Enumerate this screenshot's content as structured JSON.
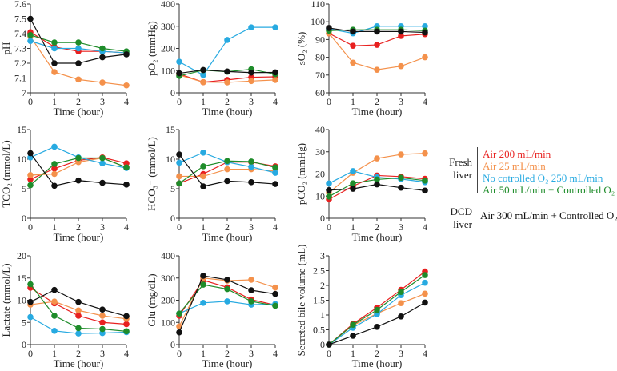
{
  "chart_data": [
    {
      "type": "line",
      "id": "ph",
      "ylabel": "pH",
      "xlabel": "Time (hour)",
      "x": [
        0,
        1,
        2,
        3,
        4
      ],
      "ylim": [
        7,
        7.6
      ],
      "yticks": [
        "7",
        "7.1",
        "7.2",
        "7.3",
        "7.4",
        "7.5",
        "7.6"
      ],
      "ytick_values": [
        7,
        7.1,
        7.2,
        7.3,
        7.4,
        7.5,
        7.6
      ],
      "series": [
        {
          "values": [
            7.41,
            7.31,
            7.28,
            7.28,
            7.27
          ]
        },
        {
          "values": [
            7.38,
            7.14,
            7.09,
            7.07,
            7.05
          ]
        },
        {
          "values": [
            7.35,
            7.3,
            7.3,
            7.28,
            7.27
          ]
        },
        {
          "values": [
            7.39,
            7.34,
            7.34,
            7.3,
            7.28
          ]
        },
        {
          "values": [
            7.5,
            7.2,
            7.2,
            7.24,
            7.26
          ]
        }
      ]
    },
    {
      "type": "line",
      "id": "po2",
      "ylabel": "pO₂ (mmHg)",
      "xlabel": "Time (hour)",
      "x": [
        0,
        1,
        2,
        3,
        4
      ],
      "ylim": [
        0,
        400
      ],
      "yticks": [
        "0",
        "100",
        "200",
        "300",
        "400"
      ],
      "ytick_values": [
        0,
        100,
        200,
        300,
        400
      ],
      "series": [
        {
          "values": [
            85,
            48,
            58,
            70,
            72
          ]
        },
        {
          "values": [
            80,
            48,
            47,
            53,
            58
          ]
        },
        {
          "values": [
            140,
            80,
            238,
            295,
            295
          ]
        },
        {
          "values": [
            76,
            102,
            95,
            106,
            84
          ]
        },
        {
          "values": [
            88,
            103,
            96,
            91,
            92
          ]
        }
      ]
    },
    {
      "type": "line",
      "id": "so2",
      "ylabel": "sO₂ (%)",
      "xlabel": "Time (hour)",
      "x": [
        0,
        1,
        2,
        3,
        4
      ],
      "ylim": [
        60,
        110
      ],
      "yticks": [
        "60",
        "70",
        "80",
        "90",
        "100",
        "110"
      ],
      "ytick_values": [
        60,
        70,
        80,
        90,
        100,
        110
      ],
      "series": [
        {
          "values": [
            93.5,
            86.5,
            87,
            92,
            93
          ]
        },
        {
          "values": [
            93.5,
            77,
            73,
            75,
            80
          ]
        },
        {
          "values": [
            96,
            93.5,
            97.5,
            97.5,
            97.5
          ]
        },
        {
          "values": [
            95,
            95.5,
            95.5,
            95.5,
            95
          ]
        },
        {
          "values": [
            96.5,
            94.5,
            94.5,
            94.5,
            94
          ]
        }
      ]
    },
    {
      "type": "line",
      "id": "tco2",
      "ylabel": "TCO₂ (mmol/L)",
      "xlabel": "Time (hour)",
      "x": [
        0,
        1,
        2,
        3,
        4
      ],
      "ylim": [
        0,
        15
      ],
      "yticks": [
        "0",
        "5",
        "10",
        "15"
      ],
      "ytick_values": [
        0,
        5,
        10,
        15
      ],
      "series": [
        {
          "values": [
            6.6,
            8.4,
            9.8,
            10.3,
            9.3
          ]
        },
        {
          "values": [
            7.3,
            7.5,
            9.5,
            10.2,
            8.6
          ]
        },
        {
          "values": [
            10.3,
            12.1,
            10.3,
            9.3,
            8.5
          ]
        },
        {
          "values": [
            5.6,
            9.2,
            10.2,
            10.2,
            8.6
          ]
        },
        {
          "values": [
            11.0,
            5.5,
            6.4,
            6.0,
            5.7
          ]
        }
      ]
    },
    {
      "type": "line",
      "id": "hco3",
      "ylabel": "HCO₃⁻ (mmol/L)",
      "xlabel": "Time (hour)",
      "x": [
        0,
        1,
        2,
        3,
        4
      ],
      "ylim": [
        0,
        15
      ],
      "yticks": [
        "0",
        "5",
        "10",
        "15"
      ],
      "ytick_values": [
        0,
        5,
        10,
        15
      ],
      "series": [
        {
          "values": [
            5.9,
            7.5,
            9.5,
            9.5,
            8.8
          ]
        },
        {
          "values": [
            7.1,
            7.1,
            8.3,
            8.3,
            8.0
          ]
        },
        {
          "values": [
            9.4,
            11.1,
            9.5,
            8.7,
            7.7
          ]
        },
        {
          "values": [
            5.9,
            8.8,
            9.7,
            9.6,
            8.6
          ]
        },
        {
          "values": [
            10.8,
            5.4,
            6.3,
            6.1,
            5.8
          ]
        }
      ]
    },
    {
      "type": "line",
      "id": "pco2",
      "ylabel": "pCO₂ (mmHg)",
      "xlabel": "Time (hour)",
      "x": [
        0,
        1,
        2,
        3,
        4
      ],
      "ylim": [
        0,
        40
      ],
      "yticks": [
        "0",
        "10",
        "20",
        "30",
        "40"
      ],
      "ytick_values": [
        0,
        10,
        20,
        30,
        40
      ],
      "series": [
        {
          "values": [
            8.5,
            14.5,
            19.3,
            18.8,
            17.8
          ]
        },
        {
          "values": [
            11.5,
            20.5,
            27,
            28.8,
            29.3
          ]
        },
        {
          "values": [
            15.7,
            21.3,
            18.5,
            17.7,
            16.3
          ]
        },
        {
          "values": [
            9.8,
            15.8,
            17.5,
            18.3,
            17
          ]
        },
        {
          "values": [
            12.7,
            13.3,
            15.3,
            13.8,
            12.5
          ]
        }
      ]
    },
    {
      "type": "line",
      "id": "lactate",
      "ylabel": "Lactate (mmol/L)",
      "xlabel": "Time (hour)",
      "x": [
        0,
        1,
        2,
        3,
        4
      ],
      "ylim": [
        0,
        20
      ],
      "yticks": [
        "0",
        "5",
        "10",
        "15",
        "20"
      ],
      "ytick_values": [
        0,
        5,
        10,
        15,
        20
      ],
      "series": [
        {
          "values": [
            12.8,
            9.3,
            6.5,
            5.0,
            4.6
          ]
        },
        {
          "values": [
            9.0,
            9.7,
            7.7,
            6.5,
            5.8
          ]
        },
        {
          "values": [
            6.2,
            3.1,
            2.5,
            2.6,
            2.8
          ]
        },
        {
          "values": [
            13.6,
            6.5,
            3.7,
            3.5,
            3.0
          ]
        },
        {
          "values": [
            9.6,
            12.3,
            9.6,
            7.9,
            6.4
          ]
        }
      ]
    },
    {
      "type": "line",
      "id": "glu",
      "ylabel": "Glu (mg/dL)",
      "xlabel": "Time (hour)",
      "x": [
        0,
        1,
        2,
        3,
        4
      ],
      "ylim": [
        0,
        400
      ],
      "yticks": [
        "0",
        "100",
        "200",
        "300",
        "400"
      ],
      "ytick_values": [
        0,
        100,
        200,
        300,
        400
      ],
      "series": [
        {
          "values": [
            130,
            290,
            258,
            203,
            178
          ]
        },
        {
          "values": [
            82,
            300,
            288,
            292,
            257
          ]
        },
        {
          "values": [
            140,
            188,
            195,
            180,
            183
          ]
        },
        {
          "values": [
            140,
            270,
            250,
            195,
            175
          ]
        },
        {
          "values": [
            55,
            310,
            292,
            245,
            228
          ]
        }
      ]
    },
    {
      "type": "line",
      "id": "bile",
      "ylabel": "Secreted bile volume (mL)",
      "xlabel": "Time (hour)",
      "x": [
        0,
        1,
        2,
        3,
        4
      ],
      "ylim": [
        0,
        3
      ],
      "yticks": [
        "0",
        "0.5",
        "1",
        "1.5",
        "2",
        "2.5",
        "3"
      ],
      "ytick_values": [
        0,
        0.5,
        1,
        1.5,
        2,
        2.5,
        3
      ],
      "series": [
        {
          "values": [
            0,
            0.7,
            1.25,
            1.85,
            2.47
          ]
        },
        {
          "values": [
            0,
            0.65,
            1.05,
            1.4,
            1.72
          ]
        },
        {
          "values": [
            0,
            0.57,
            1.03,
            1.67,
            2.09
          ]
        },
        {
          "values": [
            0,
            0.67,
            1.17,
            1.78,
            2.35
          ]
        },
        {
          "values": [
            0,
            0.3,
            0.6,
            0.95,
            1.42
          ]
        }
      ]
    }
  ],
  "xticks": [
    "0",
    "1",
    "2",
    "3",
    "4"
  ],
  "series_colors": [
    "#e8201f",
    "#f4914b",
    "#27aae1",
    "#1e8c2a",
    "#111111"
  ],
  "legend": {
    "placement": "right",
    "fresh_group": "Fresh liver",
    "dcd_group": "DCD liver",
    "entries": [
      "Air 200 mL/min",
      "Air 25 mL/min",
      "No cotrolled O₂ 250 mL/min",
      "Air 50 mL/min + Controlled O₂",
      "Air 300 mL/min + Controlled O₂"
    ]
  }
}
